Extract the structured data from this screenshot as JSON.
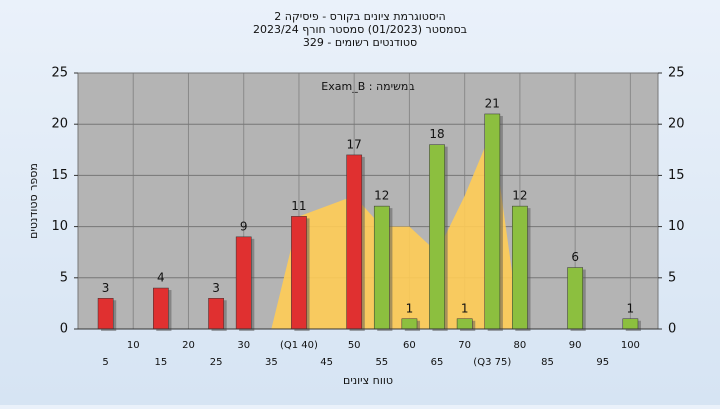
{
  "chart_data": {
    "type": "bar",
    "title": [
      "היסטוגרמת ציונים בקורס - פיסיקה 2",
      "בסמסטר (01/2023) סמסטר חורף 2023/24",
      "סטודנטים רשומים - 329"
    ],
    "annotation": "במשימה : Exam_B",
    "x_label": "טווח ציונים",
    "y_label": "מספר סטודנטים",
    "categories": [
      "5",
      "10",
      "15",
      "20",
      "25",
      "30",
      "35",
      "(Q1 40)",
      "45",
      "50",
      "55",
      "60",
      "65",
      "70",
      "(Q3 75)",
      "80",
      "85",
      "90",
      "95",
      "100"
    ],
    "values": [
      3,
      null,
      4,
      null,
      3,
      9,
      null,
      11,
      null,
      17,
      12,
      1,
      18,
      1,
      21,
      12,
      null,
      6,
      null,
      1
    ],
    "bar_colors": [
      "#e03030",
      null,
      "#e03030",
      null,
      "#e03030",
      "#e03030",
      null,
      "#e03030",
      null,
      "#e03030",
      "#8cbf3f",
      "#8cbf3f",
      "#8cbf3f",
      "#8cbf3f",
      "#8cbf3f",
      "#8cbf3f",
      null,
      "#8cbf3f",
      null,
      "#8cbf3f"
    ],
    "area": {
      "color": "#ffcc55",
      "values": [
        null,
        null,
        null,
        null,
        null,
        null,
        0,
        11,
        12,
        13,
        10,
        10,
        7.5,
        13,
        19.5,
        0,
        null,
        null,
        null,
        null
      ]
    },
    "ylim": [
      0,
      25
    ],
    "yticks": [
      0,
      5,
      10,
      15,
      20,
      25
    ],
    "grid": true
  }
}
